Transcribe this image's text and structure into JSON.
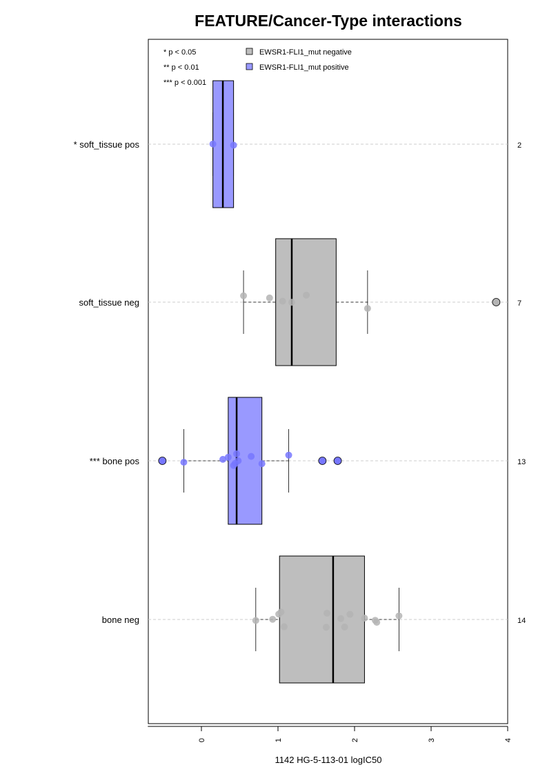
{
  "chart_data": {
    "type": "boxplot",
    "orientation": "horizontal",
    "title": "FEATURE/Cancer-Type interactions",
    "xlabel": "1142 HG-5-113-01 logIC50",
    "xlim": [
      -0.7,
      4.0
    ],
    "xticks": [
      0,
      1,
      2,
      3,
      4
    ],
    "xtick_labels": [
      "0",
      "1",
      "2",
      "3",
      "4"
    ],
    "significance_legend": [
      "* p < 0.05",
      "** p < 0.01",
      "*** p < 0.001"
    ],
    "legend": [
      {
        "label": "EWSR1-FLI1_mut negative",
        "color": "#bebebe"
      },
      {
        "label": "EWSR1-FLI1_mut positive",
        "color": "#9999ff"
      }
    ],
    "colors": {
      "negative_box": "#bebebe",
      "positive_box": "#9999ff",
      "negative_point": "#b4b4b4",
      "positive_point": "#7777ff",
      "grid": "#cccccc"
    },
    "groups": [
      {
        "label": "* soft_tissue pos",
        "n": "2",
        "status": "positive",
        "q1": 0.15,
        "median": 0.28,
        "q3": 0.42,
        "whisker_low": 0.15,
        "whisker_high": 0.42,
        "points": [
          0.15,
          0.42
        ],
        "outliers": []
      },
      {
        "label": "soft_tissue neg",
        "n": "7",
        "status": "negative",
        "q1": 0.97,
        "median": 1.18,
        "q3": 1.76,
        "whisker_low": 0.55,
        "whisker_high": 2.17,
        "points": [
          0.55,
          0.89,
          1.06,
          1.18,
          1.37,
          2.17
        ],
        "outliers": [
          3.85
        ]
      },
      {
        "label": "*** bone pos",
        "n": "13",
        "status": "positive",
        "q1": 0.35,
        "median": 0.46,
        "q3": 0.79,
        "whisker_low": -0.23,
        "whisker_high": 1.14,
        "points": [
          -0.23,
          0.28,
          0.35,
          0.42,
          0.44,
          0.46,
          0.48,
          0.65,
          0.79,
          1.14
        ],
        "outliers": [
          -0.51,
          1.58,
          1.78
        ]
      },
      {
        "label": "bone neg",
        "n": "14",
        "status": "negative",
        "q1": 1.02,
        "median": 1.72,
        "q3": 2.13,
        "whisker_low": 0.71,
        "whisker_high": 2.58,
        "points": [
          0.71,
          0.93,
          1.01,
          1.04,
          1.08,
          1.63,
          1.64,
          1.82,
          1.87,
          1.94,
          2.13,
          2.27,
          2.29,
          2.58
        ],
        "outliers": []
      }
    ]
  }
}
